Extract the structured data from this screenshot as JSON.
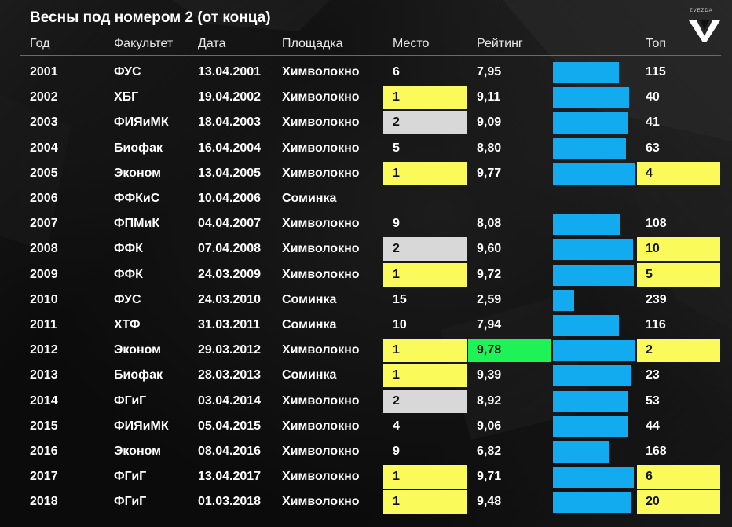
{
  "title": "Весны под номером 2 (от конца)",
  "logo_text": "ZVEZDA",
  "colors": {
    "gold": "#fafa5a",
    "silver": "#d8d8d8",
    "best_rating": "#1ff257",
    "bar": "#13abf0",
    "header_line": "#6a6a6a"
  },
  "columns": {
    "year": "Год",
    "faculty": "Факультет",
    "date": "Дата",
    "venue": "Площадка",
    "place": "Место",
    "rating": "Рейтинг",
    "top": "Топ"
  },
  "rating_scale_max": 10,
  "rows": [
    {
      "year": "2001",
      "faculty": "ФУС",
      "date": "13.04.2001",
      "venue": "Химволокно",
      "place": "6",
      "rating": "7,95",
      "rating_value": 7.95,
      "top": "115",
      "place_hl": "",
      "rating_hl": "",
      "top_hl": ""
    },
    {
      "year": "2002",
      "faculty": "ХБГ",
      "date": "19.04.2002",
      "venue": "Химволокно",
      "place": "1",
      "rating": "9,11",
      "rating_value": 9.11,
      "top": "40",
      "place_hl": "gold",
      "rating_hl": "",
      "top_hl": ""
    },
    {
      "year": "2003",
      "faculty": "ФИЯиМК",
      "date": "18.04.2003",
      "venue": "Химволокно",
      "place": "2",
      "rating": "9,09",
      "rating_value": 9.09,
      "top": "41",
      "place_hl": "silver",
      "rating_hl": "",
      "top_hl": ""
    },
    {
      "year": "2004",
      "faculty": "Биофак",
      "date": "16.04.2004",
      "venue": "Химволокно",
      "place": "5",
      "rating": "8,80",
      "rating_value": 8.8,
      "top": "63",
      "place_hl": "",
      "rating_hl": "",
      "top_hl": ""
    },
    {
      "year": "2005",
      "faculty": "Эконом",
      "date": "13.04.2005",
      "venue": "Химволокно",
      "place": "1",
      "rating": "9,77",
      "rating_value": 9.77,
      "top": "4",
      "place_hl": "gold",
      "rating_hl": "",
      "top_hl": "gold"
    },
    {
      "year": "2006",
      "faculty": "ФФКиС",
      "date": "10.04.2006",
      "venue": "Соминка",
      "place": "",
      "rating": "",
      "rating_value": null,
      "top": "",
      "place_hl": "",
      "rating_hl": "",
      "top_hl": ""
    },
    {
      "year": "2007",
      "faculty": "ФПМиК",
      "date": "04.04.2007",
      "venue": "Химволокно",
      "place": "9",
      "rating": "8,08",
      "rating_value": 8.08,
      "top": "108",
      "place_hl": "",
      "rating_hl": "",
      "top_hl": ""
    },
    {
      "year": "2008",
      "faculty": "ФФК",
      "date": "07.04.2008",
      "venue": "Химволокно",
      "place": "2",
      "rating": "9,60",
      "rating_value": 9.6,
      "top": "10",
      "place_hl": "silver",
      "rating_hl": "",
      "top_hl": "gold"
    },
    {
      "year": "2009",
      "faculty": "ФФК",
      "date": "24.03.2009",
      "venue": "Химволокно",
      "place": "1",
      "rating": "9,72",
      "rating_value": 9.72,
      "top": "5",
      "place_hl": "gold",
      "rating_hl": "",
      "top_hl": "gold"
    },
    {
      "year": "2010",
      "faculty": "ФУС",
      "date": "24.03.2010",
      "venue": "Соминка",
      "place": "15",
      "rating": "2,59",
      "rating_value": 2.59,
      "top": "239",
      "place_hl": "",
      "rating_hl": "",
      "top_hl": ""
    },
    {
      "year": "2011",
      "faculty": "ХТФ",
      "date": "31.03.2011",
      "venue": "Соминка",
      "place": "10",
      "rating": "7,94",
      "rating_value": 7.94,
      "top": "116",
      "place_hl": "",
      "rating_hl": "",
      "top_hl": ""
    },
    {
      "year": "2012",
      "faculty": "Эконом",
      "date": "29.03.2012",
      "venue": "Химволокно",
      "place": "1",
      "rating": "9,78",
      "rating_value": 9.78,
      "top": "2",
      "place_hl": "gold",
      "rating_hl": "green",
      "top_hl": "gold"
    },
    {
      "year": "2013",
      "faculty": "Биофак",
      "date": "28.03.2013",
      "venue": "Соминка",
      "place": "1",
      "rating": "9,39",
      "rating_value": 9.39,
      "top": "23",
      "place_hl": "gold",
      "rating_hl": "",
      "top_hl": ""
    },
    {
      "year": "2014",
      "faculty": "ФГиГ",
      "date": "03.04.2014",
      "venue": "Химволокно",
      "place": "2",
      "rating": "8,92",
      "rating_value": 8.92,
      "top": "53",
      "place_hl": "silver",
      "rating_hl": "",
      "top_hl": ""
    },
    {
      "year": "2015",
      "faculty": "ФИЯиМК",
      "date": "05.04.2015",
      "venue": "Химволокно",
      "place": "4",
      "rating": "9,06",
      "rating_value": 9.06,
      "top": "44",
      "place_hl": "",
      "rating_hl": "",
      "top_hl": ""
    },
    {
      "year": "2016",
      "faculty": "Эконом",
      "date": "08.04.2016",
      "venue": "Химволокно",
      "place": "9",
      "rating": "6,82",
      "rating_value": 6.82,
      "top": "168",
      "place_hl": "",
      "rating_hl": "",
      "top_hl": ""
    },
    {
      "year": "2017",
      "faculty": "ФГиГ",
      "date": "13.04.2017",
      "venue": "Химволокно",
      "place": "1",
      "rating": "9,71",
      "rating_value": 9.71,
      "top": "6",
      "place_hl": "gold",
      "rating_hl": "",
      "top_hl": "gold"
    },
    {
      "year": "2018",
      "faculty": "ФГиГ",
      "date": "01.03.2018",
      "venue": "Химволокно",
      "place": "1",
      "rating": "9,48",
      "rating_value": 9.48,
      "top": "20",
      "place_hl": "gold",
      "rating_hl": "",
      "top_hl": "gold"
    }
  ]
}
